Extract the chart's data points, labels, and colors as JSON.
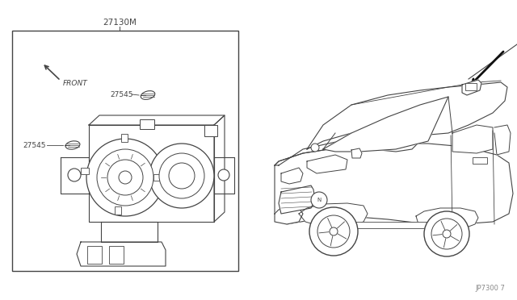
{
  "background_color": "#ffffff",
  "line_color": "#444444",
  "thin_line": "#555555",
  "label_27130M": "27130M",
  "label_27545_1": "27545",
  "label_27545_2": "27545",
  "label_front": "FRONT",
  "label_bottom_right": "JP7300 7",
  "fig_width": 6.4,
  "fig_height": 3.72,
  "dpi": 100
}
